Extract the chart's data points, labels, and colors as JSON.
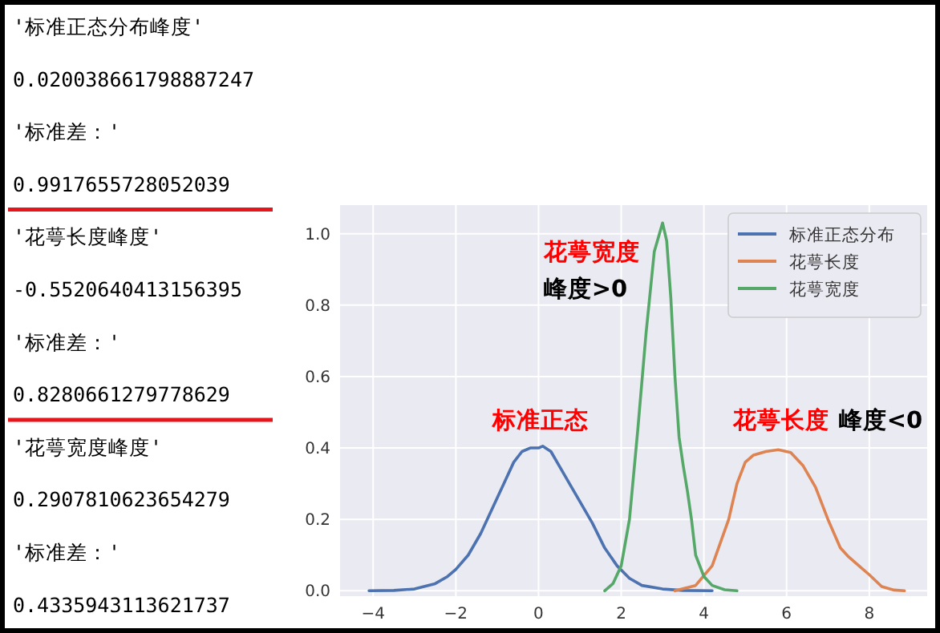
{
  "chart_data": {
    "type": "line",
    "xlim": [
      -4.8,
      9.4
    ],
    "ylim": [
      -0.015,
      1.08
    ],
    "xticks": [
      {
        "value": -4,
        "label": "−4"
      },
      {
        "value": -2,
        "label": "−2"
      },
      0,
      2,
      4,
      6,
      8
    ],
    "yticks": [
      {
        "value": 0,
        "label": "0.0"
      },
      {
        "value": 0.2,
        "label": "0.2"
      },
      {
        "value": 0.4,
        "label": "0.4"
      },
      {
        "value": 0.6,
        "label": "0.6"
      },
      {
        "value": 0.8,
        "label": "0.8"
      },
      {
        "value": 1,
        "label": "1.0"
      }
    ],
    "grid": true,
    "legend": "top right",
    "marker": "none",
    "line_style": "solid",
    "series": [
      {
        "name": "标准正态分布",
        "color": "#4c72b0",
        "x": [
          -4.1,
          -3.5,
          -3,
          -2.5,
          -2.2,
          -2,
          -1.7,
          -1.4,
          -1.2,
          -1,
          -0.8,
          -0.6,
          -0.4,
          -0.2,
          0,
          0.1,
          0.3,
          0.5,
          0.8,
          1,
          1.3,
          1.6,
          1.9,
          2.2,
          2.5,
          3,
          3.5,
          4.2
        ],
        "values": [
          0,
          0.001,
          0.005,
          0.02,
          0.04,
          0.06,
          0.1,
          0.16,
          0.21,
          0.26,
          0.31,
          0.36,
          0.39,
          0.4,
          0.4,
          0.405,
          0.39,
          0.35,
          0.29,
          0.25,
          0.19,
          0.12,
          0.07,
          0.035,
          0.015,
          0.005,
          0.001,
          0
        ]
      },
      {
        "name": "花萼长度",
        "color": "#dd8452",
        "x": [
          3.3,
          3.8,
          4.2,
          4.6,
          4.8,
          5.0,
          5.2,
          5.5,
          5.8,
          6.1,
          6.4,
          6.7,
          7.0,
          7.3,
          7.5,
          7.8,
          8.0,
          8.3,
          8.6,
          8.85
        ],
        "values": [
          0,
          0.015,
          0.07,
          0.2,
          0.3,
          0.36,
          0.38,
          0.39,
          0.395,
          0.387,
          0.35,
          0.29,
          0.2,
          0.12,
          0.095,
          0.065,
          0.045,
          0.012,
          0.002,
          0
        ]
      },
      {
        "name": "花萼宽度",
        "color": "#55a868",
        "x": [
          1.6,
          1.8,
          2.0,
          2.2,
          2.4,
          2.6,
          2.8,
          3.0,
          3.1,
          3.2,
          3.3,
          3.4,
          3.5,
          3.6,
          3.7,
          3.8,
          4.0,
          4.2,
          4.5,
          4.8
        ],
        "values": [
          0,
          0.02,
          0.07,
          0.2,
          0.45,
          0.72,
          0.95,
          1.03,
          0.98,
          0.82,
          0.6,
          0.43,
          0.35,
          0.28,
          0.2,
          0.1,
          0.04,
          0.015,
          0.003,
          0
        ]
      }
    ],
    "annotations": [
      "花萼宽度",
      "峰度>0",
      "标准正态",
      "花萼长度",
      "峰度<0",
      "'标准正态分布峰度'",
      "0.020038661798887247",
      "'标准差：'",
      "0.9917655728052039",
      "'花萼长度峰度'",
      "-0.5520640413156395",
      "'标准差：'",
      "0.8280661279778629",
      "'花萼宽度峰度'",
      "0.2907810623654279",
      "'标准差：'",
      "0.4335943113621737"
    ]
  }
}
